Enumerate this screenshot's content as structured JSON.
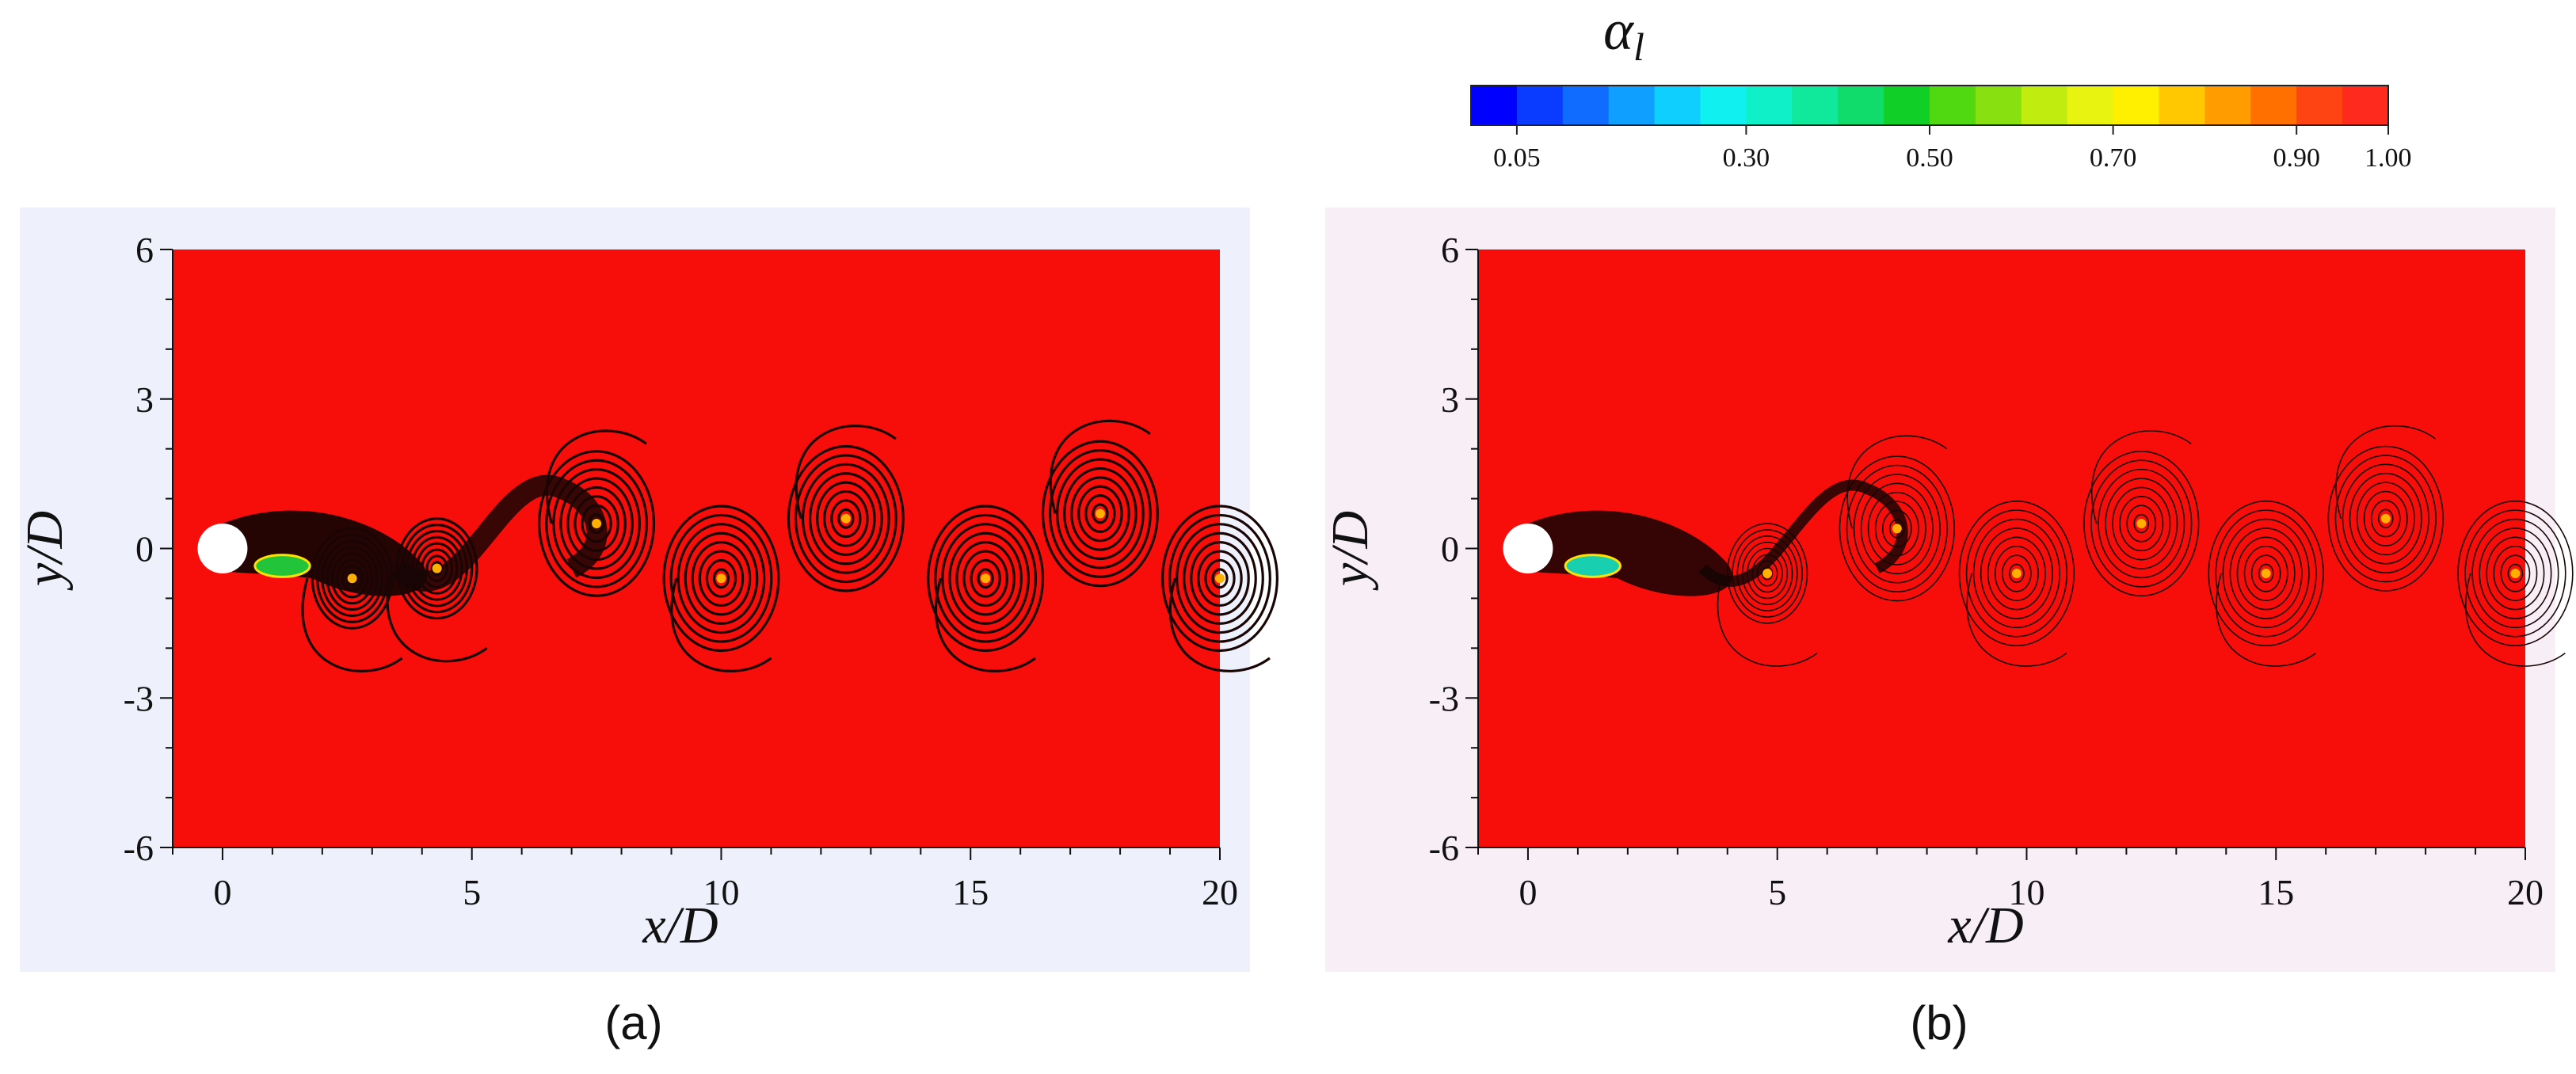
{
  "colorbar": {
    "title": "α",
    "title_subscript": "l",
    "ticks": [
      {
        "value": 0.05,
        "label": "0.05"
      },
      {
        "value": 0.3,
        "label": "0.30"
      },
      {
        "value": 0.5,
        "label": "0.50"
      },
      {
        "value": 0.7,
        "label": "0.70"
      },
      {
        "value": 0.9,
        "label": "0.90"
      },
      {
        "value": 1.0,
        "label": "1.00"
      }
    ],
    "range": [
      0.0,
      1.0
    ],
    "levels": 20,
    "colors": [
      "#0000ff",
      "#0a3cff",
      "#0f6cff",
      "#0fa0ff",
      "#0fcfff",
      "#10f0f0",
      "#10f0c8",
      "#10e89c",
      "#10dc6c",
      "#10d028",
      "#50d810",
      "#88e010",
      "#c0ec10",
      "#e8f410",
      "#fff000",
      "#ffc800",
      "#ff9c00",
      "#ff7000",
      "#ff4414",
      "#ff2a1e"
    ]
  },
  "chart_data": [
    {
      "type": "heatmap",
      "panel": "(a)",
      "xlabel": "x/D",
      "ylabel": "y/D",
      "xlim": [
        -1,
        20
      ],
      "ylim": [
        -6,
        6
      ],
      "xticks": [
        0,
        5,
        10,
        15,
        20
      ],
      "yticks": [
        6,
        3,
        0,
        -3,
        -6
      ],
      "background_value": 1.0,
      "cylinder": {
        "x": 0,
        "y": 0,
        "diameter": 1
      },
      "vortices": [
        {
          "x": 2.6,
          "y": -0.6
        },
        {
          "x": 4.3,
          "y": -0.4
        },
        {
          "x": 7.5,
          "y": 0.5
        },
        {
          "x": 10.0,
          "y": -0.6
        },
        {
          "x": 12.5,
          "y": 0.6
        },
        {
          "x": 15.3,
          "y": -0.6
        },
        {
          "x": 17.6,
          "y": 0.7
        },
        {
          "x": 20.0,
          "y": -0.6
        }
      ]
    },
    {
      "type": "heatmap",
      "panel": "(b)",
      "xlabel": "x/D",
      "ylabel": "y/D",
      "xlim": [
        -1,
        20
      ],
      "ylim": [
        -6,
        6
      ],
      "xticks": [
        0,
        5,
        10,
        15,
        20
      ],
      "yticks": [
        6,
        3,
        0,
        -3,
        -6
      ],
      "background_value": 1.0,
      "cylinder": {
        "x": 0,
        "y": 0,
        "diameter": 1
      },
      "vortices": [
        {
          "x": 2.0,
          "y": -0.2
        },
        {
          "x": 4.8,
          "y": -0.5
        },
        {
          "x": 7.4,
          "y": 0.4
        },
        {
          "x": 9.8,
          "y": -0.5
        },
        {
          "x": 12.3,
          "y": 0.5
        },
        {
          "x": 14.8,
          "y": -0.5
        },
        {
          "x": 17.2,
          "y": 0.6
        },
        {
          "x": 19.8,
          "y": -0.5
        }
      ]
    }
  ]
}
